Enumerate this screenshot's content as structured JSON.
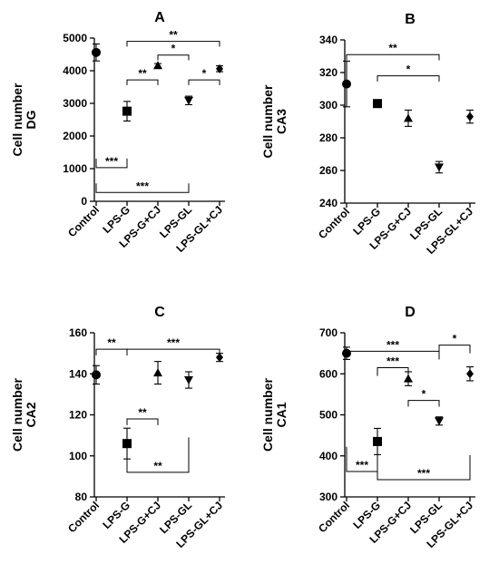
{
  "chart_data": [
    {
      "type": "scatter",
      "title": "A",
      "ylabel": [
        "Cell number",
        "DG"
      ],
      "categories": [
        "Control",
        "LPS-G",
        "LPS-G+CJ",
        "LPS-GL",
        "LPS-GL+CJ"
      ],
      "markers": [
        "circle",
        "square",
        "triangle-up",
        "triangle-down",
        "diamond"
      ],
      "values": [
        4560,
        2760,
        4160,
        3090,
        4060
      ],
      "errors": [
        260,
        300,
        60,
        130,
        90
      ],
      "ylim": [
        0,
        5000
      ],
      "yticks": [
        0,
        1000,
        2000,
        3000,
        4000,
        5000
      ],
      "ytick_labels": [
        "0",
        "1000",
        "2000",
        "3000",
        "4000",
        "5000"
      ],
      "brackets": [
        {
          "from": 1,
          "to": 4,
          "y": 4900,
          "dir": "down",
          "drop": 160,
          "label": "**"
        },
        {
          "from": 2,
          "to": 3,
          "y": 4480,
          "dir": "down",
          "drop": 160,
          "label": "*"
        },
        {
          "from": 1,
          "to": 2,
          "y": 3720,
          "dir": "down",
          "drop": 160,
          "label": "**"
        },
        {
          "from": 3,
          "to": 4,
          "y": 3720,
          "dir": "down",
          "drop": 160,
          "label": "*"
        },
        {
          "from": 0,
          "to": 1,
          "y": 1030,
          "dir": "up",
          "drop": 280,
          "label": "***"
        },
        {
          "from": 0,
          "to": 3,
          "y": 270,
          "dir": "up",
          "drop": 280,
          "label": "***"
        }
      ]
    },
    {
      "type": "scatter",
      "title": "B",
      "ylabel": [
        "Cell number",
        "CA3"
      ],
      "categories": [
        "Control",
        "LPS-G",
        "LPS-G+CJ",
        "LPS-GL",
        "LPS-GL+CJ"
      ],
      "markers": [
        "circle",
        "square",
        "triangle-up",
        "triangle-down",
        "diamond"
      ],
      "values": [
        313,
        301,
        292,
        262,
        293
      ],
      "errors": [
        14,
        0,
        5,
        3.5,
        4
      ],
      "ylim": [
        240,
        340
      ],
      "yticks": [
        240,
        260,
        280,
        300,
        320,
        340
      ],
      "ytick_labels": [
        "240",
        "260",
        "280",
        "300",
        "320",
        "340"
      ],
      "brackets": [
        {
          "from": 0,
          "to": 3,
          "y": 331,
          "dir": "down",
          "drop": 3.5,
          "label": "**"
        },
        {
          "from": 1,
          "to": 3,
          "y": 318,
          "dir": "down",
          "drop": 3.5,
          "label": "*"
        }
      ]
    },
    {
      "type": "scatter",
      "title": "C",
      "ylabel": [
        "Cell number",
        "CA2"
      ],
      "categories": [
        "Control",
        "LPS-G",
        "LPS-G+CJ",
        "LPS-GL",
        "LPS-GL+CJ"
      ],
      "markers": [
        "circle",
        "square",
        "triangle-up",
        "triangle-down",
        "diamond"
      ],
      "values": [
        139.5,
        106,
        140.5,
        137,
        148
      ],
      "errors": [
        4.5,
        7.5,
        5.5,
        4,
        2
      ],
      "ylim": [
        80,
        160
      ],
      "yticks": [
        80,
        100,
        120,
        140,
        160
      ],
      "ytick_labels": [
        "80",
        "100",
        "120",
        "140",
        "160"
      ],
      "brackets": [
        {
          "from": 0,
          "to": 1,
          "y": 152,
          "dir": "down",
          "drop": 3,
          "label": "**"
        },
        {
          "from": 1,
          "to": 4,
          "y": 152,
          "dir": "down",
          "drop": 3,
          "label": "***"
        },
        {
          "from": 1,
          "to": 2,
          "y": 118,
          "dir": "down",
          "drop": 3,
          "label": "**"
        },
        {
          "from": 1,
          "to": 3,
          "y": 92,
          "dir": "up",
          "drop": 17,
          "label": "**"
        }
      ]
    },
    {
      "type": "scatter",
      "title": "D",
      "ylabel": [
        "Cell number",
        "CA1"
      ],
      "categories": [
        "Control",
        "LPS-G",
        "LPS-G+CJ",
        "LPS-GL",
        "LPS-GL+CJ"
      ],
      "markers": [
        "circle",
        "square",
        "triangle-up",
        "triangle-down",
        "diamond"
      ],
      "values": [
        650,
        435,
        588,
        485,
        600
      ],
      "errors": [
        15,
        32,
        17,
        10,
        17
      ],
      "ylim": [
        300,
        700
      ],
      "yticks": [
        300,
        400,
        500,
        600,
        700
      ],
      "ytick_labels": [
        "300",
        "400",
        "500",
        "600",
        "700"
      ],
      "brackets": [
        {
          "from": 3,
          "to": 4,
          "y": 670,
          "dir": "down",
          "drop": 20,
          "label": "*"
        },
        {
          "from": 0,
          "to": 3,
          "y": 655,
          "dir": "down",
          "drop": 20,
          "label": "***"
        },
        {
          "from": 1,
          "to": 2,
          "y": 615,
          "dir": "down",
          "drop": 20,
          "label": "***"
        },
        {
          "from": 2,
          "to": 3,
          "y": 535,
          "dir": "down",
          "drop": 15,
          "label": "*"
        },
        {
          "from": 0,
          "to": 1,
          "y": 362,
          "dir": "up",
          "drop": 60,
          "label": "***"
        },
        {
          "from": 1,
          "to": 4,
          "y": 342,
          "dir": "up",
          "drop": 60,
          "label": "***"
        }
      ]
    }
  ]
}
